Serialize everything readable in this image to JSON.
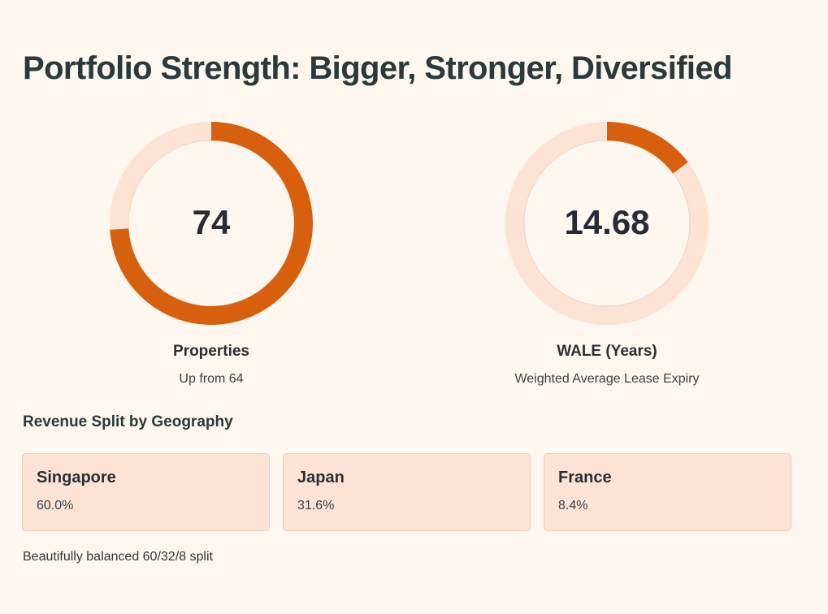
{
  "page": {
    "title": "Portfolio Strength: Bigger, Stronger, Diversified"
  },
  "colors": {
    "background": "#FEF7EF",
    "accent": "#D6600E",
    "track": "#FCE3D3",
    "card_bg": "#FCE3D3"
  },
  "metrics": [
    {
      "value": "74",
      "label": "Properties",
      "subtext": "Up from 64",
      "progress": 0.74
    },
    {
      "value": "14.68",
      "label": "WALE (Years)",
      "subtext": "Weighted Average Lease Expiry",
      "progress": 0.147
    }
  ],
  "revenue": {
    "title": "Revenue Split by Geography",
    "regions": [
      {
        "name": "Singapore",
        "value": "60.0%"
      },
      {
        "name": "Japan",
        "value": "31.6%"
      },
      {
        "name": "France",
        "value": "8.4%"
      }
    ],
    "footnote": "Beautifully balanced 60/32/8 split"
  }
}
